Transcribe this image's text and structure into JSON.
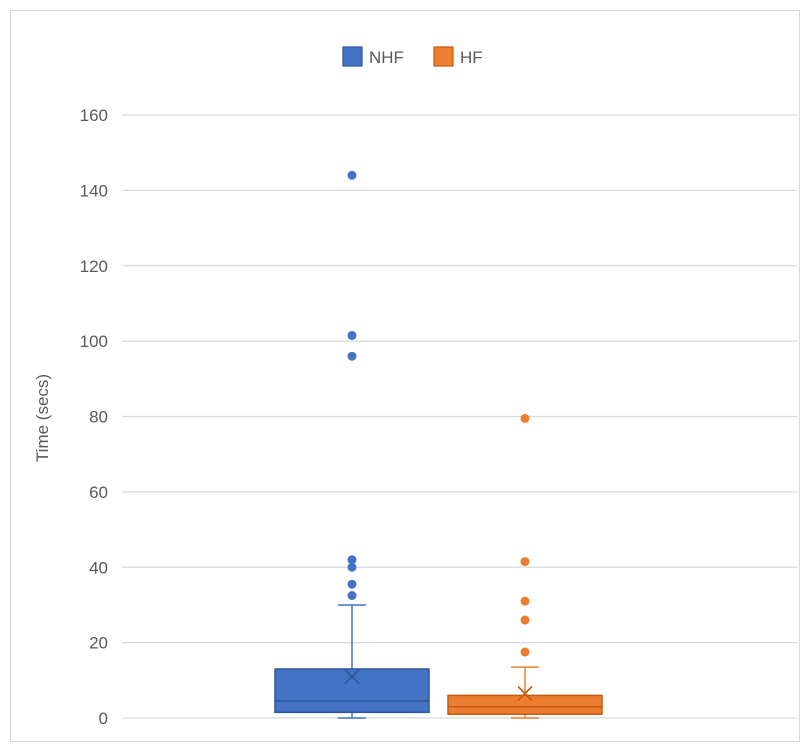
{
  "chart_data": {
    "type": "boxplot",
    "ylabel": "Time (secs)",
    "ylim": [
      0,
      160
    ],
    "yticks": [
      0,
      20,
      40,
      60,
      80,
      100,
      120,
      140,
      160
    ],
    "y_tick_labels": [
      "0",
      "20",
      "40",
      "60",
      "80",
      "100",
      "120",
      "140",
      "160"
    ],
    "grid": true,
    "legend_position": "top",
    "series": [
      {
        "name": "NHF",
        "color": "#4472C4",
        "fill": "#4472C4",
        "min": 0,
        "q1": 1.5,
        "median": 4.5,
        "q3": 13,
        "max": 30,
        "mean": 11,
        "outliers": [
          32.5,
          35.5,
          40,
          42,
          96,
          101.5,
          144
        ]
      },
      {
        "name": "HF",
        "color": "#ED7D31",
        "fill": "#ED7D31",
        "min": 0,
        "q1": 1,
        "median": 3,
        "q3": 6,
        "max": 13.5,
        "mean": 6.5,
        "outliers": [
          17.5,
          26,
          31,
          41.5,
          79.5
        ]
      }
    ]
  }
}
